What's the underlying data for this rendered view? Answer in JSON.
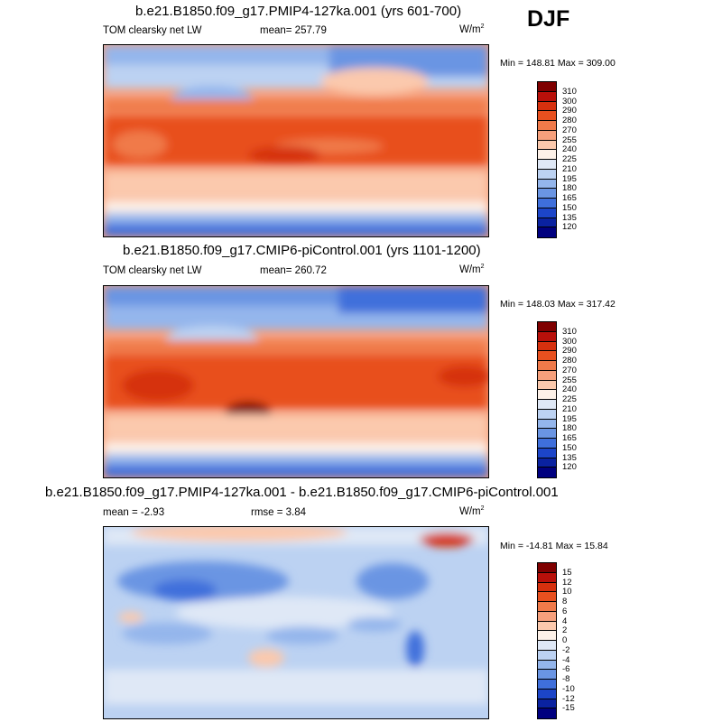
{
  "season": "DJF",
  "panels": [
    {
      "title": "b.e21.B1850.f09_g17.PMIP4-127ka.001 (yrs 601-700)",
      "left_label": "TOM clearsky net LW",
      "center_label": "mean= 257.79",
      "units": "W/m",
      "units_sup": "2",
      "minmax": "Min = 148.81 Max = 309.00"
    },
    {
      "title": "b.e21.B1850.f09_g17.CMIP6-piControl.001 (yrs 1101-1200)",
      "left_label": "TOM clearsky net LW",
      "center_label": "mean= 260.72",
      "units": "W/m",
      "units_sup": "2",
      "minmax": "Min = 148.03 Max = 317.42"
    },
    {
      "title": "b.e21.B1850.f09_g17.PMIP4-127ka.001 - b.e21.B1850.f09_g17.CMIP6-piControl.001",
      "left_label": "mean =  -2.93",
      "center_label": "rmse =  3.84",
      "units": "W/m",
      "units_sup": "2",
      "minmax": "Min = -14.81 Max =  15.84"
    }
  ],
  "colorbars": {
    "abs_labels": [
      "310",
      "300",
      "290",
      "280",
      "270",
      "255",
      "240",
      "225",
      "210",
      "195",
      "180",
      "165",
      "150",
      "135",
      "120"
    ],
    "diff_labels": [
      "15",
      "12",
      "10",
      "8",
      "6",
      "4",
      "2",
      "0",
      "-2",
      "-4",
      "-6",
      "-8",
      "-10",
      "-12",
      "-15"
    ],
    "colors": [
      "#7f0000",
      "#b8100a",
      "#d6300e",
      "#e8501f",
      "#f07a4a",
      "#f6a07c",
      "#fbc9ad",
      "#fdf1e8",
      "#dfe8f6",
      "#bcd2f2",
      "#94b6ec",
      "#6a95e3",
      "#3f6fdb",
      "#1c45c8",
      "#0a22a0",
      "#00007f"
    ]
  }
}
